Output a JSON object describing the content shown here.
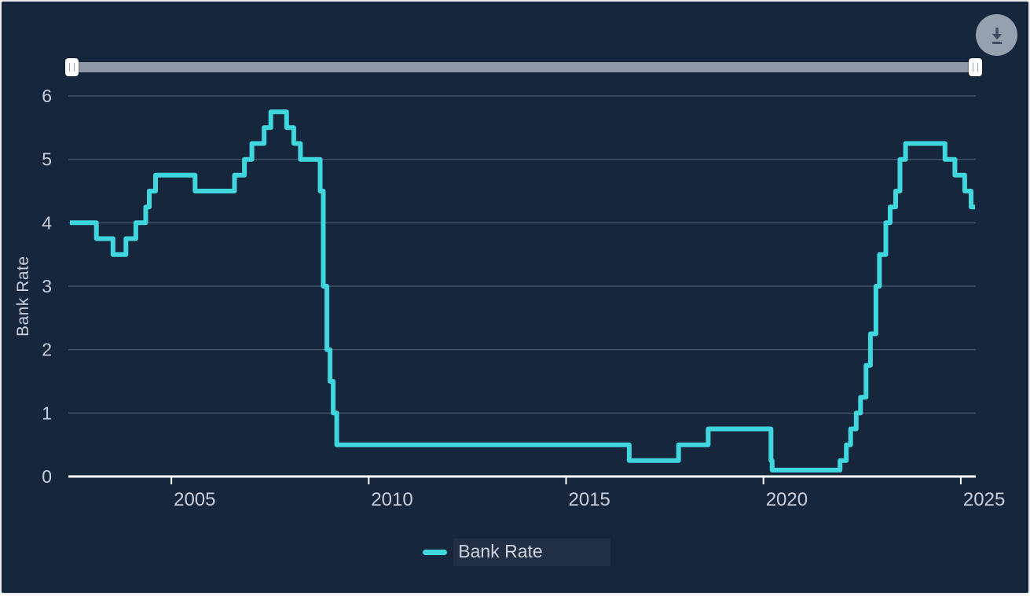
{
  "theme": {
    "background": "#16263C",
    "grid_color": "#43536B",
    "axis_color": "#FFFFFF",
    "label_color": "#C9CEDA",
    "line_color": "#3FD6DE",
    "slider_track_color": "#8E98A6",
    "download_button_color": "#96A1AF",
    "download_icon_color": "#3E4D63"
  },
  "controls": {
    "range_slider": {
      "start_percent": 0,
      "end_percent": 100
    }
  },
  "legend": {
    "items": [
      {
        "label": "Bank Rate",
        "color": "#3FD6DE"
      }
    ]
  },
  "chart_data": {
    "type": "line",
    "step": "after",
    "title": "",
    "xlabel": "",
    "ylabel": "Bank Rate",
    "grid": "horizontal",
    "legend_position": "bottom",
    "xlim": [
      2002.43,
      2025.36
    ],
    "ylim": [
      0,
      6
    ],
    "x_ticks": [
      "2005",
      "2010",
      "2015",
      "2020",
      "2025"
    ],
    "x_tick_values": [
      2005,
      2010,
      2015,
      2020,
      2025
    ],
    "y_ticks": [
      0,
      1,
      2,
      3,
      4,
      5,
      6
    ],
    "series": [
      {
        "name": "Bank Rate",
        "color": "#3FD6DE",
        "points": [
          [
            2002.43,
            4.0
          ],
          [
            2003.1,
            3.75
          ],
          [
            2003.52,
            3.5
          ],
          [
            2003.85,
            3.75
          ],
          [
            2004.1,
            4.0
          ],
          [
            2004.35,
            4.25
          ],
          [
            2004.44,
            4.5
          ],
          [
            2004.6,
            4.75
          ],
          [
            2005.6,
            4.5
          ],
          [
            2006.6,
            4.75
          ],
          [
            2006.85,
            5.0
          ],
          [
            2007.04,
            5.25
          ],
          [
            2007.35,
            5.5
          ],
          [
            2007.52,
            5.75
          ],
          [
            2007.92,
            5.5
          ],
          [
            2008.1,
            5.25
          ],
          [
            2008.27,
            5.0
          ],
          [
            2008.77,
            4.5
          ],
          [
            2008.85,
            3.0
          ],
          [
            2008.94,
            2.0
          ],
          [
            2009.02,
            1.5
          ],
          [
            2009.1,
            1.0
          ],
          [
            2009.19,
            0.5
          ],
          [
            2016.6,
            0.25
          ],
          [
            2017.85,
            0.5
          ],
          [
            2018.6,
            0.75
          ],
          [
            2020.19,
            0.25
          ],
          [
            2020.22,
            0.1
          ],
          [
            2021.94,
            0.25
          ],
          [
            2022.1,
            0.5
          ],
          [
            2022.21,
            0.75
          ],
          [
            2022.35,
            1.0
          ],
          [
            2022.46,
            1.25
          ],
          [
            2022.6,
            1.75
          ],
          [
            2022.71,
            2.25
          ],
          [
            2022.85,
            3.0
          ],
          [
            2022.94,
            3.5
          ],
          [
            2023.1,
            4.0
          ],
          [
            2023.21,
            4.25
          ],
          [
            2023.35,
            4.5
          ],
          [
            2023.46,
            5.0
          ],
          [
            2023.6,
            5.25
          ],
          [
            2024.6,
            5.0
          ],
          [
            2024.85,
            4.75
          ],
          [
            2025.1,
            4.5
          ],
          [
            2025.26,
            4.25
          ]
        ]
      }
    ]
  }
}
